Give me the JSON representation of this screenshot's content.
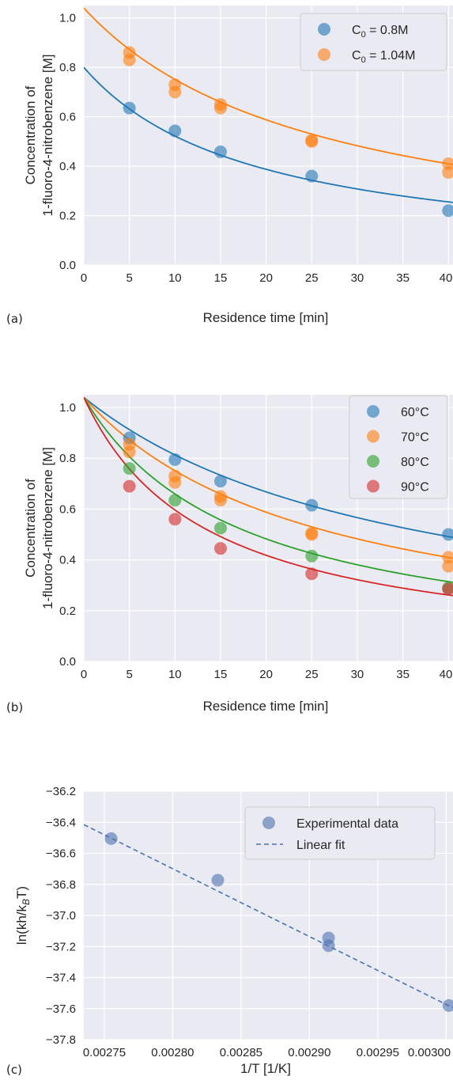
{
  "chart_data": [
    {
      "panel_label": "(a)",
      "type": "scatter",
      "xlabel": "Residence time [min]",
      "ylabel": [
        "Concentration of",
        "1-fluoro-4-nitrobenzene [M]"
      ],
      "xlim": [
        0,
        40.5
      ],
      "ylim": [
        0,
        1.05
      ],
      "xticks": [
        0,
        5,
        10,
        15,
        20,
        25,
        30,
        35,
        40
      ],
      "yticks": [
        0.0,
        0.2,
        0.4,
        0.6,
        0.8,
        1.0
      ],
      "ytick_decimals": 1,
      "grid": true,
      "legend_position": "top-right",
      "series": [
        {
          "name": "C0 = 0.8M",
          "legend_main": "C",
          "legend_sub": "0",
          "legend_rest": " = 0.8M",
          "color": "#1f77b4",
          "points": [
            [
              5,
              0.635
            ],
            [
              10,
              0.543
            ],
            [
              15,
              0.458
            ],
            [
              25,
              0.36
            ],
            [
              40,
              0.22
            ]
          ],
          "fit": {
            "c0": 0.8,
            "k": 0.0666
          }
        },
        {
          "name": "C0 = 1.04M",
          "legend_main": "C",
          "legend_sub": "0",
          "legend_rest": " = 1.04M",
          "color": "#ff7f0e",
          "points": [
            [
              5,
              0.86
            ],
            [
              5,
              0.83
            ],
            [
              10,
              0.73
            ],
            [
              10,
              0.7
            ],
            [
              15,
              0.65
            ],
            [
              15,
              0.635
            ],
            [
              25,
              0.505
            ],
            [
              25,
              0.5
            ],
            [
              40,
              0.41
            ],
            [
              40,
              0.375
            ]
          ],
          "fit": {
            "c0": 1.04,
            "k": 0.037
          }
        }
      ]
    },
    {
      "panel_label": "(b)",
      "type": "scatter",
      "xlabel": "Residence time [min]",
      "ylabel": [
        "Concentration of",
        "1-fluoro-4-nitrobenzene [M]"
      ],
      "xlim": [
        0,
        40.5
      ],
      "ylim": [
        0,
        1.05
      ],
      "xticks": [
        0,
        5,
        10,
        15,
        20,
        25,
        30,
        35,
        40
      ],
      "yticks": [
        0.0,
        0.2,
        0.4,
        0.6,
        0.8,
        1.0
      ],
      "ytick_decimals": 1,
      "grid": true,
      "legend_position": "top-right",
      "series": [
        {
          "name": "60°C",
          "legend_main": "60°C",
          "color": "#1f77b4",
          "points": [
            [
              5,
              0.88
            ],
            [
              10,
              0.795
            ],
            [
              15,
              0.71
            ],
            [
              25,
              0.615
            ],
            [
              40,
              0.5
            ]
          ],
          "fit": {
            "c0": 1.04,
            "k": 0.0268
          }
        },
        {
          "name": "70°C",
          "legend_main": "70°C",
          "color": "#ff7f0e",
          "points": [
            [
              5,
              0.855
            ],
            [
              5,
              0.825
            ],
            [
              10,
              0.73
            ],
            [
              10,
              0.705
            ],
            [
              15,
              0.65
            ],
            [
              15,
              0.635
            ],
            [
              25,
              0.505
            ],
            [
              25,
              0.5
            ],
            [
              40,
              0.41
            ],
            [
              40,
              0.375
            ]
          ],
          "fit": {
            "c0": 1.04,
            "k": 0.037
          }
        },
        {
          "name": "80°C",
          "legend_main": "80°C",
          "color": "#2ca02c",
          "points": [
            [
              5,
              0.76
            ],
            [
              10,
              0.635
            ],
            [
              15,
              0.525
            ],
            [
              25,
              0.415
            ],
            [
              40,
              0.29
            ]
          ],
          "fit": {
            "c0": 1.04,
            "k": 0.0555
          }
        },
        {
          "name": "90°C",
          "legend_main": "90°C",
          "color": "#d62728",
          "points": [
            [
              5,
              0.69
            ],
            [
              10,
              0.56
            ],
            [
              15,
              0.445
            ],
            [
              25,
              0.345
            ],
            [
              40,
              0.285
            ]
          ],
          "fit": {
            "c0": 1.04,
            "k": 0.0715
          }
        }
      ]
    },
    {
      "panel_label": "(c)",
      "type": "scatter",
      "xlabel": "1/T [1/K]",
      "ylabel_main": "ln(kh/k",
      "ylabel_sub": "B",
      "ylabel_rest": "T)",
      "xlim": [
        0.002735,
        0.003005
      ],
      "ylim": [
        -37.8,
        -36.2
      ],
      "xticks": [
        0.00275,
        0.0028,
        0.00285,
        0.0029,
        0.00295,
        0.003
      ],
      "xtick_decimals": 5,
      "yticks": [
        -37.8,
        -37.6,
        -37.4,
        -37.2,
        -37.0,
        -36.8,
        -36.6,
        -36.4,
        -36.2
      ],
      "ytick_decimals": 1,
      "grid": true,
      "legend_position": "top-right",
      "series": [
        {
          "name": "Experimental data",
          "legend_main": "Experimental data",
          "color": "#4c72b0",
          "points": [
            [
              0.002755,
              -36.505
            ],
            [
              0.002833,
              -36.773
            ],
            [
              0.002914,
              -37.145
            ],
            [
              0.002914,
              -37.195
            ],
            [
              0.003002,
              -37.58
            ]
          ]
        }
      ],
      "fit_line": {
        "name": "Linear fit",
        "color": "#4c72b0",
        "x": [
          0.002735,
          0.003005
        ],
        "y": [
          -36.415,
          -37.595
        ]
      }
    }
  ]
}
